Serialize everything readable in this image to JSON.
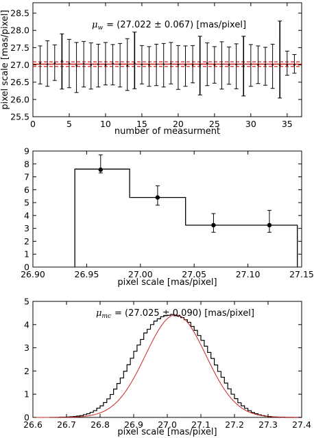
{
  "chart_data": [
    {
      "type": "scatter",
      "xlabel": "number of measurment",
      "ylabel": "pixel scale [mas/pixel]",
      "xlim": [
        0,
        37
      ],
      "ylim": [
        25.5,
        28.8
      ],
      "xticks": [
        "0",
        "5",
        "10",
        "15",
        "20",
        "25",
        "30",
        "35"
      ],
      "yticks": [
        "25.5",
        "26.0",
        "26.5",
        "27.0",
        "27.5",
        "28.0",
        "28.5"
      ],
      "annotation": {
        "symbol": "μ",
        "subscript": "w",
        "text": "= (27.022 ± 0.067) [mas/pixel]"
      },
      "mean_line": {
        "value": 27.022,
        "sigma": 0.067,
        "color": "#cc0000"
      },
      "series": [
        {
          "x": [
            1,
            2,
            3,
            4,
            5,
            6,
            7,
            8,
            9,
            10,
            11,
            12,
            13,
            14,
            15,
            16,
            17,
            18,
            19,
            20,
            21,
            22,
            23,
            24,
            25,
            26,
            27,
            28,
            29,
            30,
            31,
            32,
            33,
            34,
            35,
            36
          ],
          "y": [
            27.05,
            27.02,
            27.05,
            27.12,
            27.04,
            26.98,
            27.03,
            27.0,
            27.02,
            27.0,
            27.04,
            27.02,
            26.98,
            27.05,
            27.01,
            27.0,
            27.02,
            27.02,
            27.03,
            27.01,
            27.0,
            27.0,
            27.0,
            27.05,
            27.0,
            27.02,
            27.0,
            27.01,
            26.97,
            27.02,
            27.0,
            27.01,
            27.0,
            26.99,
            27.0,
            27.0
          ],
          "yerr_low": [
            0.6,
            0.64,
            0.5,
            0.82,
            0.7,
            0.78,
            0.67,
            0.7,
            0.66,
            0.58,
            0.62,
            0.66,
            0.72,
            0.74,
            0.56,
            0.62,
            0.62,
            0.66,
            0.58,
            0.72,
            0.62,
            0.52,
            0.87,
            0.65,
            0.53,
            0.72,
            0.56,
            0.7,
            0.87,
            0.64,
            0.54,
            0.6,
            0.68,
            0.95,
            0.3,
            0.24
          ],
          "yerr_high": [
            0.5,
            0.68,
            0.53,
            0.78,
            0.7,
            0.67,
            0.65,
            0.64,
            0.58,
            0.65,
            0.55,
            0.6,
            0.78,
            0.9,
            0.55,
            0.53,
            0.58,
            0.6,
            0.62,
            0.55,
            0.55,
            0.56,
            0.83,
            0.59,
            0.53,
            0.65,
            0.52,
            0.6,
            0.86,
            0.57,
            0.55,
            0.5,
            0.6,
            1.28,
            0.4,
            0.3
          ]
        }
      ]
    },
    {
      "type": "bar",
      "xlabel": "pixel scale [mas/pixel]",
      "ylabel": "",
      "xlim": [
        26.9,
        27.15
      ],
      "ylim": [
        0,
        9
      ],
      "xticks": [
        "26.90",
        "26.95",
        "27.00",
        "27.05",
        "27.10",
        "27.15"
      ],
      "yticks": [
        "0",
        "1",
        "2",
        "3",
        "4",
        "5",
        "6",
        "7",
        "8",
        "9"
      ],
      "bin_edges": [
        26.939,
        26.99,
        27.042,
        27.146
      ],
      "values": [
        7.6,
        5.4,
        3.25
      ],
      "points": {
        "x": [
          26.963,
          27.016,
          27.068,
          27.12
        ],
        "y": [
          7.55,
          5.4,
          3.25,
          3.25
        ],
        "yerr_low": [
          0.25,
          0.6,
          0.55,
          0.55
        ],
        "yerr_high": [
          1.15,
          0.9,
          0.9,
          1.15
        ],
        "xerr": [
          0.002,
          0.003,
          0.004,
          0.003
        ]
      }
    },
    {
      "type": "histogram",
      "xlabel": "pixel scale [mas/pixel]",
      "ylabel": "",
      "xlim": [
        26.6,
        27.4
      ],
      "ylim": [
        0,
        5
      ],
      "xticks": [
        "26.6",
        "26.7",
        "26.8",
        "26.9",
        "27.0",
        "27.1",
        "27.2",
        "27.3",
        "27.4"
      ],
      "yticks": [
        "0",
        "1",
        "2",
        "3",
        "4",
        "5"
      ],
      "annotation": {
        "symbol": "μ",
        "subscript": "mc",
        "text": "= (27.025 ± 0.090) [mas/pixel]"
      },
      "histogram_color": "#000000",
      "fit_color": "#cc2222",
      "fit": {
        "type": "gaussian",
        "mean": 27.025,
        "sigma": 0.09,
        "peak": 4.42
      },
      "bin_edges": [
        26.65,
        26.66,
        26.67,
        26.68,
        26.69,
        26.7,
        26.71,
        26.72,
        26.73,
        26.74,
        26.75,
        26.76,
        26.77,
        26.78,
        26.79,
        26.8,
        26.81,
        26.82,
        26.83,
        26.84,
        26.85,
        26.86,
        26.87,
        26.88,
        26.89,
        26.9,
        26.91,
        26.92,
        26.93,
        26.94,
        26.95,
        26.96,
        26.97,
        26.98,
        26.99,
        27.0,
        27.01,
        27.02,
        27.03,
        27.04,
        27.05,
        27.06,
        27.07,
        27.08,
        27.09,
        27.1,
        27.11,
        27.12,
        27.13,
        27.14,
        27.15,
        27.16,
        27.17,
        27.18,
        27.19,
        27.2,
        27.21,
        27.22,
        27.23,
        27.24,
        27.25,
        27.26,
        27.27,
        27.28,
        27.29,
        27.3,
        27.31,
        27.32,
        27.33,
        27.34,
        27.35,
        27.36,
        27.37,
        27.38,
        27.39,
        27.4
      ],
      "values": [
        0.0,
        0.0,
        0.0,
        0.01,
        0.01,
        0.02,
        0.03,
        0.04,
        0.06,
        0.08,
        0.12,
        0.16,
        0.22,
        0.29,
        0.4,
        0.5,
        0.64,
        0.8,
        0.99,
        1.22,
        1.46,
        1.7,
        1.99,
        2.27,
        2.55,
        2.85,
        3.12,
        3.36,
        3.64,
        3.8,
        4.0,
        4.15,
        4.25,
        4.34,
        4.38,
        4.4,
        4.44,
        4.38,
        4.36,
        4.3,
        4.21,
        4.1,
        3.92,
        3.75,
        3.53,
        3.32,
        3.07,
        2.8,
        2.54,
        2.26,
        1.98,
        1.73,
        1.48,
        1.23,
        1.0,
        0.81,
        0.63,
        0.5,
        0.39,
        0.29,
        0.21,
        0.16,
        0.11,
        0.08,
        0.05,
        0.04,
        0.02,
        0.02,
        0.01,
        0.01,
        0.0,
        0.0,
        0.0,
        0.0,
        0.0
      ]
    }
  ]
}
